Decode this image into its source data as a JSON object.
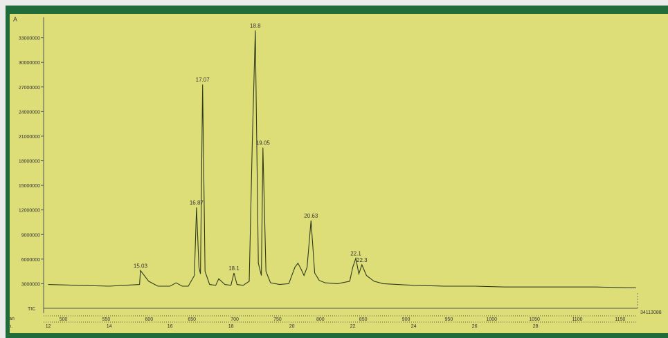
{
  "panel": {
    "corner_label": "A"
  },
  "chart_data": {
    "type": "line",
    "title": "",
    "series": [
      {
        "name": "TIC",
        "x": [
          12.0,
          13.0,
          14.0,
          14.5,
          15.0,
          15.03,
          15.3,
          15.6,
          16.0,
          16.2,
          16.4,
          16.6,
          16.8,
          16.87,
          16.95,
          17.0,
          17.07,
          17.15,
          17.3,
          17.5,
          17.6,
          17.8,
          18.0,
          18.1,
          18.2,
          18.4,
          18.6,
          18.7,
          18.8,
          18.9,
          19.0,
          19.05,
          19.15,
          19.3,
          19.6,
          19.9,
          20.1,
          20.2,
          20.3,
          20.4,
          20.5,
          20.63,
          20.75,
          20.9,
          21.1,
          21.5,
          21.9,
          22.0,
          22.1,
          22.2,
          22.3,
          22.45,
          22.7,
          23.0,
          24.0,
          25.0,
          26.0,
          27.0,
          28.0,
          29.0,
          30.0,
          31.0,
          31.3
        ],
        "y": [
          2900000,
          2800000,
          2700000,
          2800000,
          2900000,
          4600000,
          3300000,
          2700000,
          2700000,
          3100000,
          2700000,
          2700000,
          4000000,
          12300000,
          5000000,
          4200000,
          27300000,
          4500000,
          2900000,
          2800000,
          3600000,
          2900000,
          2800000,
          4300000,
          2900000,
          2800000,
          3300000,
          20000000,
          33900000,
          5500000,
          4000000,
          19600000,
          4500000,
          3100000,
          2900000,
          3000000,
          5000000,
          5500000,
          4800000,
          4000000,
          5000000,
          10700000,
          4300000,
          3400000,
          3100000,
          3000000,
          3300000,
          5000000,
          6100000,
          4200000,
          5300000,
          4000000,
          3300000,
          3000000,
          2800000,
          2700000,
          2700000,
          2600000,
          2600000,
          2600000,
          2600000,
          2500000,
          2500000
        ]
      }
    ],
    "peak_labels": [
      {
        "x": 15.03,
        "y": 4600000,
        "label": "15.03"
      },
      {
        "x": 16.87,
        "y": 12300000,
        "label": "16.87"
      },
      {
        "x": 17.07,
        "y": 27300000,
        "label": "17.07"
      },
      {
        "x": 18.1,
        "y": 4300000,
        "label": "18.1"
      },
      {
        "x": 18.8,
        "y": 33900000,
        "label": "18.8"
      },
      {
        "x": 19.05,
        "y": 19600000,
        "label": "19.05"
      },
      {
        "x": 20.63,
        "y": 10700000,
        "label": "20.63"
      },
      {
        "x": 22.1,
        "y": 6100000,
        "label": "22.1"
      },
      {
        "x": 22.3,
        "y": 5300000,
        "label": "22.3"
      }
    ],
    "yticks": [
      3000000,
      6000000,
      9000000,
      12000000,
      15000000,
      18000000,
      21000000,
      24000000,
      27000000,
      30000000,
      33000000
    ],
    "ylim": [
      0,
      35500000
    ],
    "xlim": [
      11.85,
      31.35
    ],
    "scan_ticks": [
      500,
      550,
      600,
      650,
      700,
      750,
      800,
      850,
      900,
      950,
      1000,
      1050,
      1100,
      1150
    ],
    "scan_label": "Scan",
    "min_ticks": [
      12,
      14,
      16,
      18,
      20,
      22,
      24,
      26,
      28
    ],
    "min_label": "Min.",
    "trace_label": "TIC",
    "max_intensity_label": "34113088",
    "colors": {
      "background": "#dede78",
      "frame": "#1f6b39",
      "trace": "#2e3a1c",
      "text": "#333333"
    },
    "grid": false
  }
}
